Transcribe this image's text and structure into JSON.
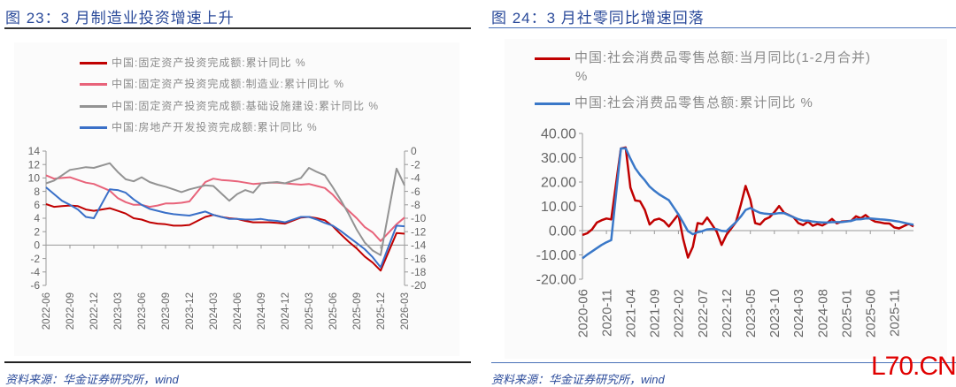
{
  "left": {
    "title": "图 23：3 月制造业投资增速上升",
    "source": "资料来源：华金证券研究所，wind",
    "chart_data": {
      "type": "line",
      "title": "",
      "y_left": {
        "range": [
          -6,
          14
        ],
        "ticks": [
          14,
          12,
          10,
          8,
          6,
          4,
          2,
          0,
          -2,
          -4,
          -6
        ]
      },
      "y_right": {
        "range": [
          -20,
          0
        ],
        "ticks": [
          0,
          -2,
          -4,
          -6,
          -8,
          -10,
          -12,
          -14,
          -16,
          -18,
          -20
        ]
      },
      "x_ticks": [
        "2022-06",
        "2022-09",
        "2022-12",
        "2023-03",
        "2023-06",
        "2023-09",
        "2023-12",
        "2024-03",
        "2024-06",
        "2024-09",
        "2024-12",
        "2025-03",
        "2025-06",
        "2025-09",
        "2025-12",
        "2026-03"
      ],
      "x": [
        "2022-06",
        "2022-07",
        "2022-08",
        "2022-09",
        "2022-10",
        "2022-11",
        "2022-12",
        "2023-02",
        "2023-03",
        "2023-04",
        "2023-05",
        "2023-06",
        "2023-07",
        "2023-08",
        "2023-09",
        "2023-10",
        "2023-11",
        "2023-12",
        "2024-02",
        "2024-03",
        "2024-04",
        "2024-05",
        "2024-06",
        "2024-07",
        "2024-08",
        "2024-09",
        "2024-10",
        "2024-11",
        "2024-12",
        "2025-02",
        "2025-03",
        "2025-04",
        "2025-05",
        "2025-06",
        "2025-07",
        "2025-08",
        "2025-09",
        "2025-10",
        "2025-11",
        "2025-12",
        "2026-02",
        "2026-03"
      ],
      "legend_position": "top",
      "grid": false,
      "series": [
        {
          "name": "中国:固定资产投资完成额:累计同比 %",
          "color": "#c00000",
          "axis": "left",
          "values": [
            6.1,
            5.7,
            5.8,
            5.9,
            5.8,
            5.3,
            5.1,
            5.5,
            5.1,
            4.7,
            4.0,
            3.8,
            3.4,
            3.2,
            3.1,
            2.9,
            2.9,
            3.0,
            4.2,
            4.5,
            4.2,
            4.0,
            3.9,
            3.6,
            3.4,
            3.4,
            3.4,
            3.3,
            3.2,
            4.1,
            4.2,
            4.0,
            3.7,
            2.8,
            1.6,
            0.5,
            -0.5,
            -1.7,
            -2.6,
            -3.8,
            1.8,
            1.7
          ]
        },
        {
          "name": "中国:固定资产投资完成额:制造业:累计同比 %",
          "color": "#e8637a",
          "axis": "left",
          "values": [
            10.4,
            9.9,
            10.0,
            10.1,
            9.7,
            9.3,
            9.1,
            8.1,
            7.0,
            6.4,
            6.0,
            6.0,
            5.7,
            5.9,
            6.2,
            6.2,
            6.3,
            6.5,
            9.4,
            9.9,
            9.7,
            9.6,
            9.5,
            9.3,
            9.1,
            9.2,
            9.3,
            9.3,
            9.2,
            9.0,
            9.1,
            8.8,
            8.5,
            7.5,
            6.2,
            5.1,
            4.0,
            2.7,
            1.9,
            0.6,
            3.1,
            4.1
          ]
        },
        {
          "name": "中国:固定资产投资完成额:基础设施建设:累计同比 %",
          "color": "#939393",
          "axis": "right",
          "values": [
            -4.8,
            -4.4,
            -3.6,
            -2.8,
            -2.6,
            -2.4,
            -2.5,
            -1.8,
            -3.1,
            -4.2,
            -4.5,
            -3.9,
            -4.6,
            -5.0,
            -5.3,
            -5.7,
            -6.1,
            -5.7,
            -5.1,
            -5.2,
            -6.3,
            -7.4,
            -6.4,
            -5.8,
            -6.2,
            -4.8,
            -4.7,
            -4.6,
            -4.8,
            -4.0,
            -2.5,
            -3.1,
            -3.6,
            -5.4,
            -7.3,
            -9.4,
            -11.7,
            -13.6,
            -14.8,
            -15.5,
            -2.6,
            -5.1
          ]
        },
        {
          "name": "中国:房地产开发投资完成额:累计同比 %",
          "color": "#3a70c8",
          "axis": "left",
          "values": [
            8.6,
            7.6,
            6.6,
            6.0,
            5.3,
            4.2,
            4.0,
            8.3,
            8.2,
            7.8,
            6.8,
            6.0,
            5.4,
            5.1,
            4.8,
            4.6,
            4.5,
            4.4,
            5.0,
            4.5,
            4.2,
            3.9,
            3.9,
            3.8,
            3.8,
            3.9,
            3.7,
            3.6,
            3.4,
            4.2,
            4.2,
            3.8,
            3.3,
            2.9,
            2.1,
            1.2,
            0.3,
            -0.6,
            -1.8,
            -3.3,
            2.9,
            2.8
          ]
        }
      ]
    }
  },
  "right": {
    "title": "图 24：3 月社零同比增速回落",
    "source": "资料来源：华金证券研究所，wind",
    "watermark": "L70.CN",
    "chart_data": {
      "type": "line",
      "title": "",
      "y_left": {
        "range": [
          -20,
          40
        ],
        "ticks": [
          "40.00",
          "30.00",
          "20.00",
          "10.00",
          "0.00",
          "-10.00",
          "-20.00"
        ]
      },
      "x_ticks": [
        "2020-06",
        "2020-11",
        "2021-04",
        "2021-09",
        "2022-02",
        "2022-07",
        "2022-12",
        "2023-05",
        "2023-10",
        "2024-03",
        "2024-08",
        "2025-01",
        "2025-06",
        "2025-11"
      ],
      "x": [
        "2020-06",
        "2020-07",
        "2020-08",
        "2020-09",
        "2020-10",
        "2020-11",
        "2020-12",
        "2021-02",
        "2021-03",
        "2021-04",
        "2021-05",
        "2021-06",
        "2021-07",
        "2021-08",
        "2021-09",
        "2021-10",
        "2021-11",
        "2021-12",
        "2022-02",
        "2022-03",
        "2022-04",
        "2022-05",
        "2022-06",
        "2022-07",
        "2022-08",
        "2022-09",
        "2022-10",
        "2022-11",
        "2022-12",
        "2023-02",
        "2023-03",
        "2023-04",
        "2023-05",
        "2023-06",
        "2023-07",
        "2023-08",
        "2023-09",
        "2023-10",
        "2023-11",
        "2023-12",
        "2024-02",
        "2024-03",
        "2024-04",
        "2024-05",
        "2024-06",
        "2024-07",
        "2024-08",
        "2024-09",
        "2024-10",
        "2024-11",
        "2024-12",
        "2025-02",
        "2025-03",
        "2025-04",
        "2025-05",
        "2025-06",
        "2025-07",
        "2025-08",
        "2025-09",
        "2025-10",
        "2025-11",
        "2025-12",
        "2026-02",
        "2026-03"
      ],
      "legend_position": "top",
      "grid": false,
      "series": [
        {
          "name": "中国:社会消费品零售总额:当月同比(1-2月合并)",
          "name_suffix": "%",
          "color": "#c00000",
          "axis": "left",
          "values": [
            -1.8,
            -1.1,
            0.5,
            3.3,
            4.3,
            5.0,
            4.6,
            33.8,
            34.2,
            17.7,
            12.4,
            12.1,
            8.5,
            2.5,
            4.4,
            4.9,
            3.9,
            1.7,
            6.7,
            -3.5,
            -11.1,
            -6.7,
            3.1,
            2.7,
            5.4,
            2.5,
            -0.5,
            -5.9,
            -1.8,
            3.5,
            10.6,
            18.4,
            12.7,
            3.1,
            2.5,
            4.6,
            5.5,
            7.6,
            10.1,
            7.4,
            5.5,
            3.1,
            2.3,
            3.7,
            2.0,
            2.7,
            2.1,
            3.2,
            4.8,
            3.0,
            3.7,
            4.0,
            5.9,
            5.1,
            6.4,
            4.8,
            3.7,
            3.4,
            3.0,
            2.9,
            1.3,
            0.9,
            2.8,
            1.7
          ]
        },
        {
          "name": "中国:社会消费品零售总额:累计同比 %",
          "color": "#3a78c8",
          "axis": "left",
          "values": [
            -11.4,
            -9.9,
            -8.6,
            -7.2,
            -5.9,
            -4.8,
            -3.9,
            33.8,
            33.9,
            29.6,
            25.7,
            23.0,
            20.7,
            18.1,
            16.4,
            14.9,
            13.7,
            12.5,
            6.7,
            3.3,
            -0.2,
            -1.5,
            -0.7,
            -0.2,
            0.5,
            0.7,
            0.6,
            -0.1,
            -0.2,
            3.5,
            5.8,
            8.5,
            9.3,
            8.2,
            7.3,
            7.0,
            6.8,
            6.9,
            7.2,
            7.2,
            5.5,
            4.7,
            4.1,
            4.1,
            3.7,
            3.5,
            3.4,
            3.3,
            3.5,
            3.5,
            3.5,
            4.0,
            4.6,
            4.7,
            5.0,
            5.0,
            4.8,
            4.6,
            4.5,
            4.3,
            4.0,
            3.7,
            2.8,
            2.4
          ]
        }
      ]
    }
  }
}
